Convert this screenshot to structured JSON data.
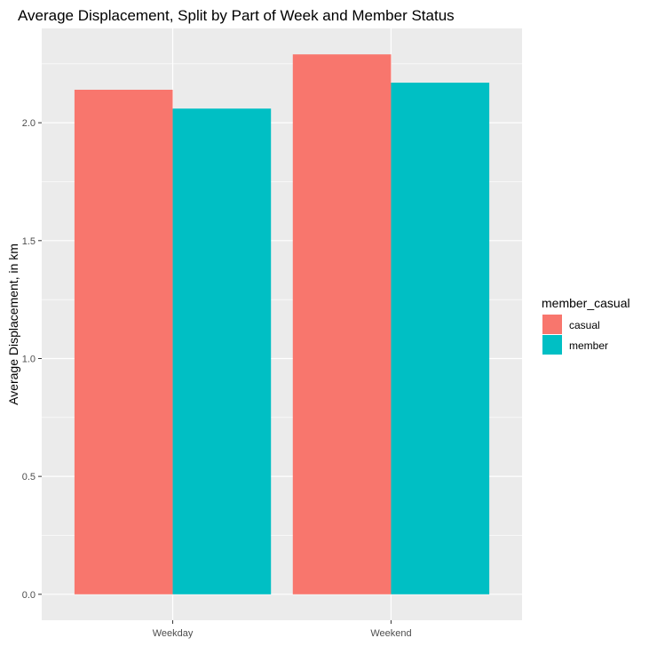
{
  "chart_data": {
    "type": "bar",
    "title": "Average Displacement, Split by Part of Week and Member Status",
    "xlabel": "",
    "ylabel": "Average Displacement, in km",
    "categories": [
      "Weekday",
      "Weekend"
    ],
    "series": [
      {
        "name": "casual",
        "values": [
          2.14,
          2.29
        ],
        "color": "#F8766D"
      },
      {
        "name": "member",
        "values": [
          2.06,
          2.17
        ],
        "color": "#00BFC4"
      }
    ],
    "ylim": [
      -0.11,
      2.4
    ],
    "yticks": [
      0.0,
      0.5,
      1.0,
      1.5,
      2.0
    ],
    "ytick_labels": [
      "0.0",
      "0.5",
      "1.0",
      "1.5",
      "2.0"
    ],
    "grid": true,
    "panel_background": "#EBEBEB",
    "legend": {
      "title": "member_casual",
      "placement": "right"
    }
  }
}
